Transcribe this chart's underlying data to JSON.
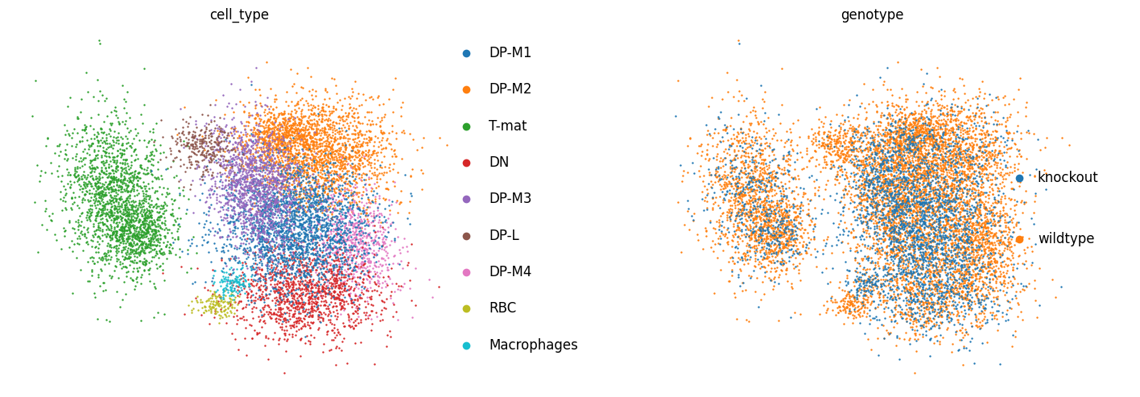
{
  "title_left": "cell_type",
  "title_right": "genotype",
  "cell_types": [
    "DP-M1",
    "DP-M2",
    "T-mat",
    "DN",
    "DP-M3",
    "DP-L",
    "DP-M4",
    "RBC",
    "Macrophages"
  ],
  "cell_type_colors": [
    "#1f77b4",
    "#ff7f0e",
    "#2ca02c",
    "#d62728",
    "#9467bd",
    "#8c564b",
    "#e377c2",
    "#bcbd22",
    "#17becf"
  ],
  "genotype_labels": [
    "knockout",
    "wildtype"
  ],
  "genotype_colors": [
    "#1f77b4",
    "#ff7f0e"
  ],
  "background_color": "#ffffff",
  "title_fontsize": 12,
  "legend_fontsize": 12,
  "marker_size": 3,
  "seed": 42
}
